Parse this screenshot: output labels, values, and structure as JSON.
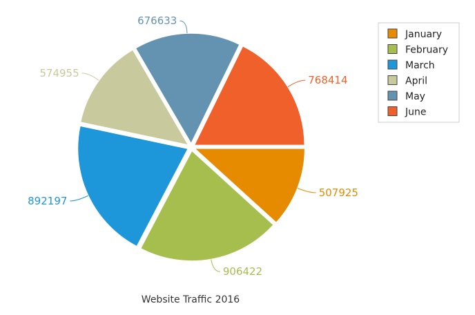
{
  "chart_data": {
    "type": "pie",
    "title": "Website Traffic 2016",
    "categories": [
      "January",
      "February",
      "March",
      "April",
      "May",
      "June"
    ],
    "values": [
      507925,
      906422,
      892197,
      574955,
      676633,
      768414
    ],
    "colors": [
      "#E68A00",
      "#A6BE4E",
      "#1E96DA",
      "#C9C99E",
      "#6493B1",
      "#F0602A"
    ],
    "start_angle_deg": 0,
    "direction": "clockwise",
    "exploded": true,
    "data_labels": true,
    "legend_position": "top-right"
  }
}
